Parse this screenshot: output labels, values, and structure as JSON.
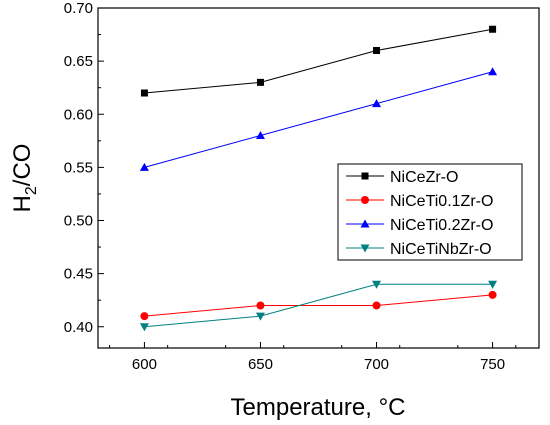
{
  "chart_data": {
    "type": "line",
    "title": "",
    "xlabel": "Temperature, °C",
    "ylabel": {
      "main": "H",
      "sub": "2",
      "rest": "/CO"
    },
    "x": [
      600,
      650,
      700,
      750
    ],
    "xlim": [
      580,
      770
    ],
    "ylim": [
      0.38,
      0.7
    ],
    "xticks": [
      "600",
      "650",
      "700",
      "750"
    ],
    "yticks": [
      "0.40",
      "0.45",
      "0.50",
      "0.55",
      "0.60",
      "0.65",
      "0.70"
    ],
    "grid": false,
    "legend_position": "center-right",
    "series": [
      {
        "name": "NiCeZr-O",
        "values": [
          0.62,
          0.63,
          0.66,
          0.68
        ],
        "color": "#000000",
        "marker": "square"
      },
      {
        "name": "NiCeTi0.1Zr-O",
        "values": [
          0.41,
          0.42,
          0.42,
          0.43
        ],
        "color": "#ff0000",
        "marker": "circle"
      },
      {
        "name": "NiCeTi0.2Zr-O",
        "values": [
          0.55,
          0.58,
          0.61,
          0.64
        ],
        "color": "#0000ff",
        "marker": "triangle-up"
      },
      {
        "name": "NiCeTiNbZr-O",
        "values": [
          0.4,
          0.41,
          0.44,
          0.44
        ],
        "color": "#008080",
        "marker": "triangle-down"
      }
    ]
  }
}
